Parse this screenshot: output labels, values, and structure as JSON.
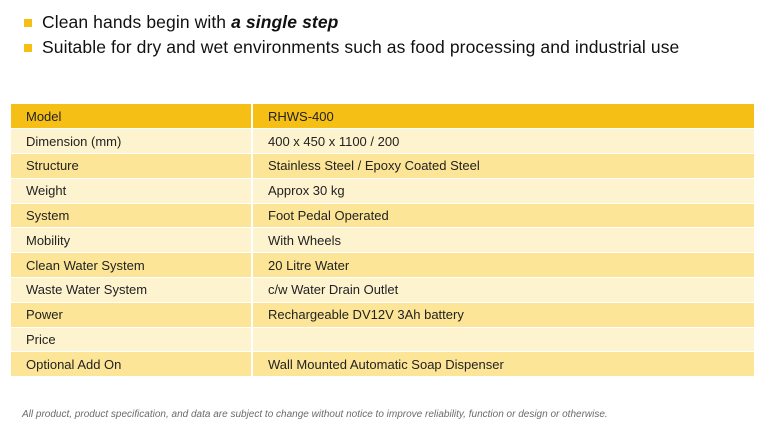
{
  "colors": {
    "accent": "#f6bf16",
    "row_light": "#fef3cf",
    "row_dark": "#fce597"
  },
  "bullets": [
    {
      "text": "Clean hands begin with",
      "emphasis": "a single step"
    },
    {
      "text": "Suitable for dry and wet environments such as food processing and industrial use",
      "emphasis": ""
    }
  ],
  "spec_table": {
    "rows": [
      {
        "label": "Model",
        "value": "RHWS-400"
      },
      {
        "label": "Dimension (mm)",
        "value": "400 x 450 x 1100 / 200"
      },
      {
        "label": "Structure",
        "value": "Stainless Steel / Epoxy Coated Steel"
      },
      {
        "label": "Weight",
        "value": "Approx 30 kg"
      },
      {
        "label": "System",
        "value": "Foot Pedal Operated"
      },
      {
        "label": "Mobility",
        "value": "With Wheels"
      },
      {
        "label": "Clean Water System",
        "value": "20 Litre Water"
      },
      {
        "label": "Waste Water System",
        "value": "c/w Water Drain Outlet"
      },
      {
        "label": "Power",
        "value": "Rechargeable DV12V 3Ah battery"
      },
      {
        "label": "Price",
        "value": ""
      },
      {
        "label": "Optional Add On",
        "value": "Wall Mounted Automatic Soap Dispenser"
      }
    ]
  },
  "disclaimer": "All product, product specification, and data are subject to change without notice to improve reliability, function or design or otherwise."
}
